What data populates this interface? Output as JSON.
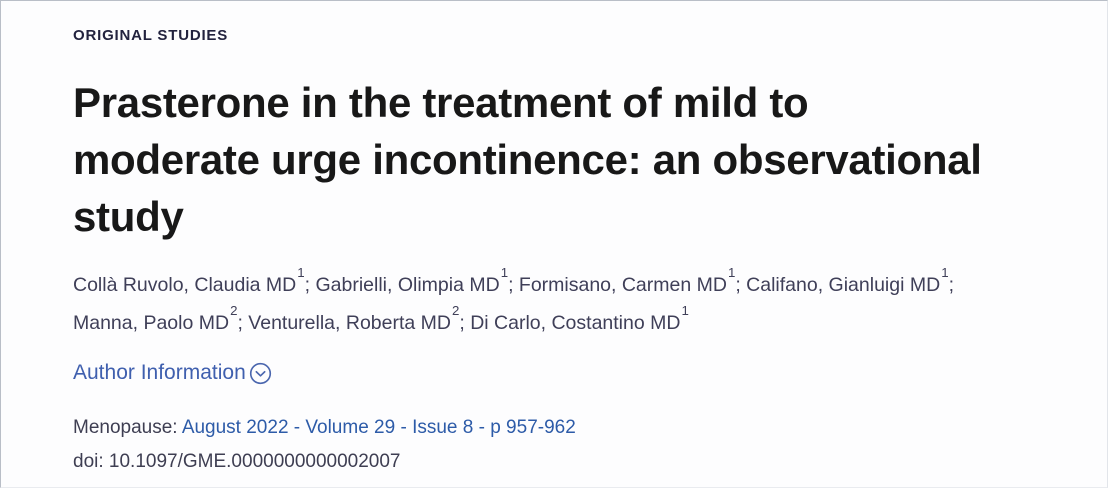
{
  "kicker": {
    "label": "ORIGINAL STUDIES"
  },
  "title": {
    "text": "Prasterone in the treatment of mild to moderate urge incontinence: an observational study",
    "lines": [
      "Prasterone in the treatment of mild to",
      "moderate urge incontinence: an observational",
      "study"
    ]
  },
  "authors": {
    "list": [
      {
        "name": "Collà Ruvolo, Claudia MD",
        "sup": "1"
      },
      {
        "name": "Gabrielli, Olimpia MD",
        "sup": "1"
      },
      {
        "name": "Formisano, Carmen MD",
        "sup": "1"
      },
      {
        "name": "Califano, Gianluigi MD",
        "sup": "1"
      },
      {
        "name": "Manna, Paolo MD",
        "sup": "2"
      },
      {
        "name": "Venturella, Roberta MD",
        "sup": "2"
      },
      {
        "name": "Di Carlo, Costantino MD",
        "sup": "1"
      }
    ],
    "separator": "; ",
    "line_break_after_index": 3
  },
  "author_info": {
    "label": "Author Information",
    "icon": "chevron-down-circle-icon"
  },
  "citation": {
    "journal_label": "Menopause:",
    "issue_text": "August 2022 - Volume 29 - Issue 8 - p 957-962"
  },
  "doi": {
    "text": "doi: 10.1097/GME.0000000000002007"
  },
  "colors": {
    "kicker": "#22223e",
    "title": "#181818",
    "authors": "#3f3f58",
    "author_info_link": "#3f5fae",
    "citation_link": "#2d5ba8",
    "body_text": "#3e3e52",
    "background": "#fdfdfe"
  }
}
